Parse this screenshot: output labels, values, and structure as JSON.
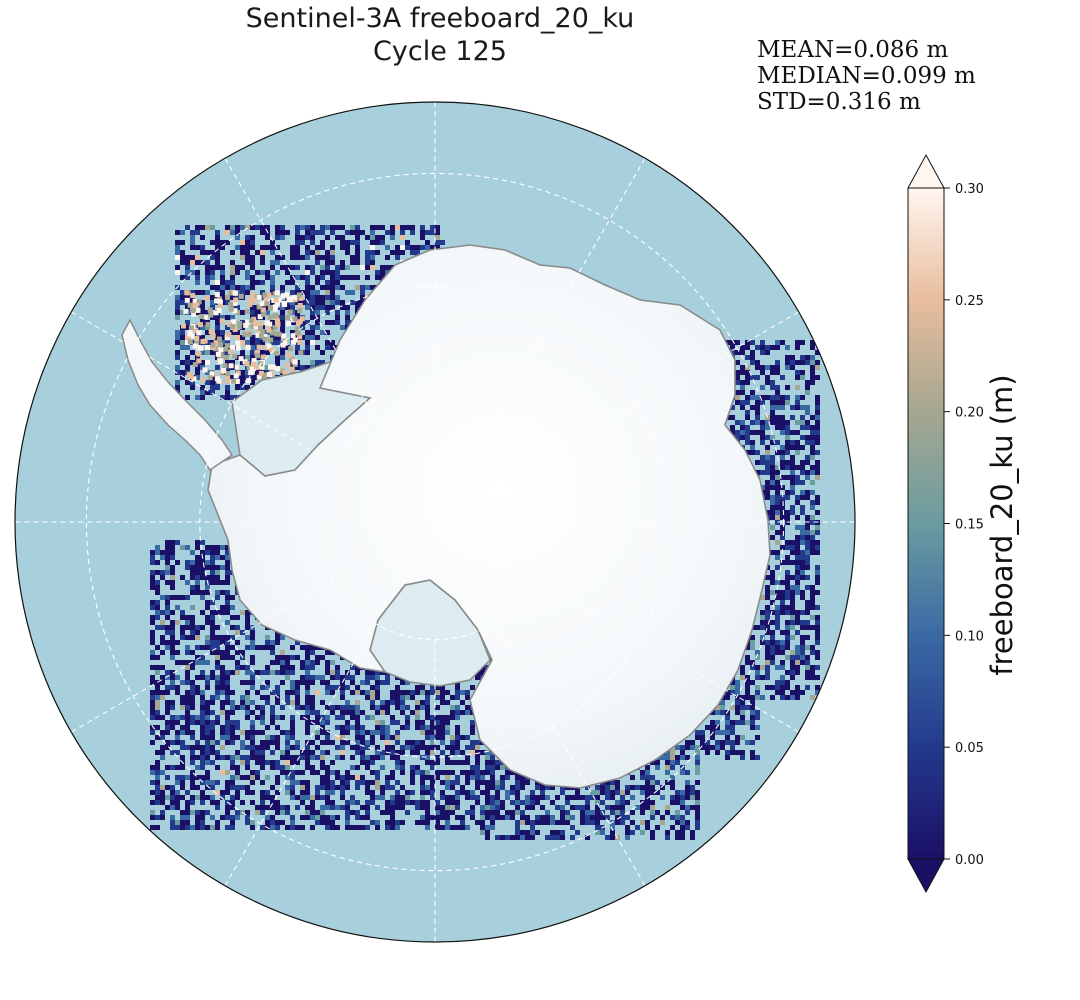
{
  "title": {
    "line1": "Sentinel-3A freeboard_20_ku",
    "line2": "Cycle 125"
  },
  "stats": {
    "mean": "MEAN=0.086 m",
    "median": "MEDIAN=0.099 m",
    "std": "STD=0.316 m"
  },
  "colorbar": {
    "label": "freeboard_20_ku (m)",
    "min": 0.0,
    "max": 0.3,
    "ticks": [
      "0.00",
      "0.05",
      "0.10",
      "0.15",
      "0.20",
      "0.25",
      "0.30"
    ],
    "extend": "both",
    "stops": [
      "#1a1066",
      "#233a8c",
      "#3a6aa4",
      "#6a9ca0",
      "#a6a790",
      "#e8bd9c",
      "#fff6f0"
    ]
  },
  "map": {
    "projection": "south-polar-stereographic",
    "ocean_color": "#a7d0dc",
    "land_ice_color": "#f6f9fa",
    "ice_shelf_color": "#dfeef3",
    "coastline_color": "#8a8a8a",
    "graticule_color": "#ffffff",
    "parallels": [
      "-60°",
      "-70°",
      "-80°"
    ],
    "meridians_deg": [
      0,
      30,
      60,
      90,
      120,
      150,
      180,
      210,
      240,
      270,
      300,
      330
    ]
  }
}
